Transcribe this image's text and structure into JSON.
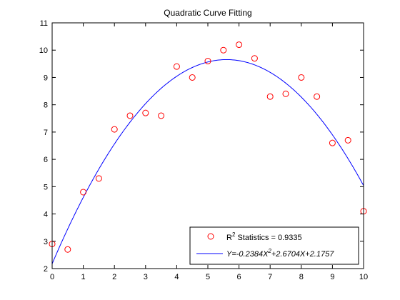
{
  "chart_data": {
    "type": "scatter",
    "title": "Quadratic Curve Fitting",
    "xlabel": "",
    "ylabel": "",
    "xlim": [
      0,
      10
    ],
    "ylim": [
      2,
      11
    ],
    "x_ticks": [
      0,
      1,
      2,
      3,
      4,
      5,
      6,
      7,
      8,
      9,
      10
    ],
    "y_ticks": [
      2,
      3,
      4,
      5,
      6,
      7,
      8,
      9,
      10,
      11
    ],
    "grid": false,
    "legend_position": "bottom-right",
    "series": [
      {
        "name": "R² Statistics = 0.9335",
        "name_base": "R",
        "name_sup": "2",
        "name_rest": " Statistics = 0.9335",
        "style": "markers",
        "marker": "circle",
        "color": "#ff0000",
        "x": [
          0,
          0.5,
          1,
          1.5,
          2,
          2.5,
          3,
          3.5,
          4,
          4.5,
          5,
          5.5,
          6,
          6.5,
          7,
          7.5,
          8,
          8.5,
          9,
          9.5,
          10
        ],
        "y": [
          2.9,
          2.7,
          4.8,
          5.3,
          7.1,
          7.6,
          7.7,
          7.6,
          9.4,
          9.0,
          9.6,
          10.0,
          10.2,
          9.7,
          8.3,
          8.4,
          9.0,
          8.3,
          6.6,
          6.7,
          4.1
        ]
      },
      {
        "name": "Y=-0.2384X²+2.6704X+2.1757",
        "style": "line",
        "color": "#0000ff",
        "equation_parts": [
          "Y=-0.2384X",
          "2",
          "+2.6704X+2.1757"
        ],
        "coefficients": {
          "a": -0.2384,
          "b": 2.6704,
          "c": 2.1757
        }
      }
    ]
  }
}
